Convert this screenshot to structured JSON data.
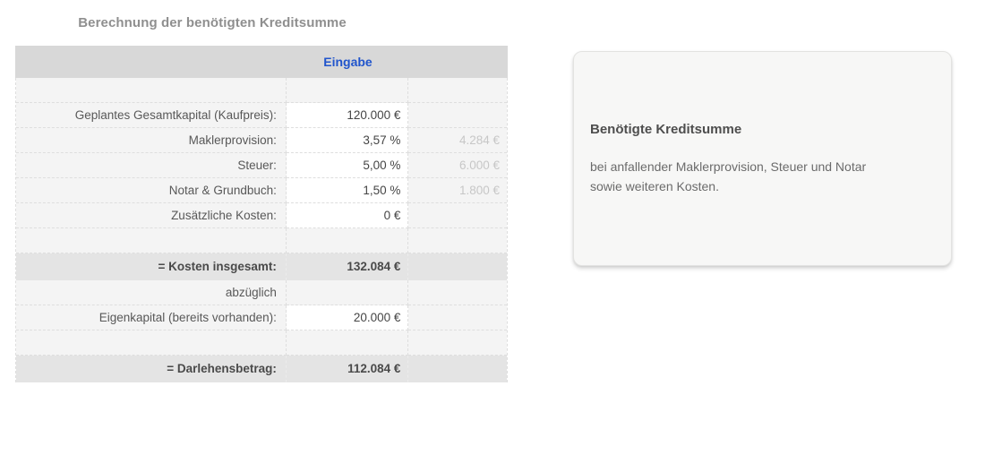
{
  "title": "Berechnung der benötigten Kreditsumme",
  "table": {
    "header": {
      "input_column_label": "Eingabe"
    },
    "rows": [
      {
        "type": "spacer",
        "label": "",
        "value": "",
        "result": ""
      },
      {
        "type": "input",
        "label": "Geplantes Gesamtkapital (Kaufpreis):",
        "value": "120.000 €",
        "result": ""
      },
      {
        "type": "input",
        "label": "Maklerprovision:",
        "value": "3,57 %",
        "result": "4.284 €"
      },
      {
        "type": "input",
        "label": "Steuer:",
        "value": "5,00 %",
        "result": "6.000 €"
      },
      {
        "type": "input",
        "label": "Notar & Grundbuch:",
        "value": "1,50 %",
        "result": "1.800 €"
      },
      {
        "type": "input",
        "label": "Zusätzliche Kosten:",
        "value": "0 €",
        "result": ""
      },
      {
        "type": "spacer",
        "label": "",
        "value": "",
        "result": ""
      },
      {
        "type": "summary",
        "label": "= Kosten insgesamt:",
        "value": "132.084 €",
        "result": ""
      },
      {
        "type": "plain",
        "label": "abzüglich",
        "value": "",
        "result": ""
      },
      {
        "type": "input",
        "label": "Eigenkapital (bereits vorhanden):",
        "value": "20.000 €",
        "result": ""
      },
      {
        "type": "spacer",
        "label": "",
        "value": "",
        "result": ""
      },
      {
        "type": "summary",
        "label": "= Darlehensbetrag:",
        "value": "112.084 €",
        "result": ""
      }
    ]
  },
  "info_card": {
    "heading": "Benötigte Kreditsumme",
    "body": "bei anfallender Maklerprovision, Steuer und Notar sowie weiteren Kosten."
  },
  "colors": {
    "input_header_text": "#2155cc",
    "header_background": "#d8d8d8",
    "table_background": "#f4f4f4",
    "summary_background": "#e4e4e4",
    "muted_result_text": "#c7c7c7",
    "title_text": "#8f8f8f"
  }
}
